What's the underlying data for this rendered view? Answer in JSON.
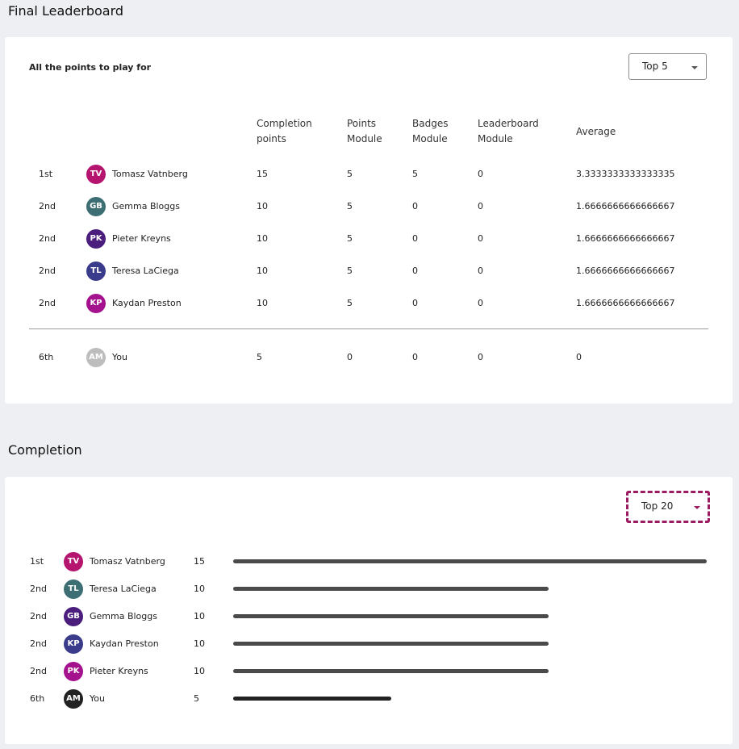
{
  "leaderboard": {
    "title": "Final Leaderboard",
    "subtitle": "All the points to play for",
    "select_label": "Top 5",
    "columns": [
      {
        "l1": "Completion",
        "l2": "points"
      },
      {
        "l1": "Points",
        "l2": "Module"
      },
      {
        "l1": "Badges",
        "l2": "Module"
      },
      {
        "l1": "Leaderboard",
        "l2": "Module"
      },
      {
        "l1": "Average",
        "l2": ""
      }
    ],
    "rows": [
      {
        "rank": "1st",
        "initials": "TV",
        "color": "#b5156f",
        "name": "Tomasz Vatnberg",
        "c1": "15",
        "c2": "5",
        "c3": "5",
        "c4": "0",
        "avg": "3.3333333333333335"
      },
      {
        "rank": "2nd",
        "initials": "GB",
        "color": "#3d6e74",
        "name": "Gemma Bloggs",
        "c1": "10",
        "c2": "5",
        "c3": "0",
        "c4": "0",
        "avg": "1.6666666666666667"
      },
      {
        "rank": "2nd",
        "initials": "PK",
        "color": "#4b1e7e",
        "name": "Pieter Kreyns",
        "c1": "10",
        "c2": "5",
        "c3": "0",
        "c4": "0",
        "avg": "1.6666666666666667"
      },
      {
        "rank": "2nd",
        "initials": "TL",
        "color": "#3a3c8b",
        "name": "Teresa LaCiega",
        "c1": "10",
        "c2": "5",
        "c3": "0",
        "c4": "0",
        "avg": "1.6666666666666667"
      },
      {
        "rank": "2nd",
        "initials": "KP",
        "color": "#a4128d",
        "name": "Kaydan Preston",
        "c1": "10",
        "c2": "5",
        "c3": "0",
        "c4": "0",
        "avg": "1.6666666666666667"
      }
    ],
    "self_row": {
      "rank": "6th",
      "initials": "AM",
      "color": "#bdbdbd",
      "name": "You",
      "c1": "5",
      "c2": "0",
      "c3": "0",
      "c4": "0",
      "avg": "0"
    }
  },
  "completion": {
    "title": "Completion",
    "select_label": "Top 20",
    "max_value": 15,
    "rows": [
      {
        "rank": "1st",
        "initials": "TV",
        "color": "#b5156f",
        "name": "Tomasz Vatnberg",
        "value": 15,
        "value_label": "15"
      },
      {
        "rank": "2nd",
        "initials": "TL",
        "color": "#3d6e74",
        "name": "Teresa LaCiega",
        "value": 10,
        "value_label": "10"
      },
      {
        "rank": "2nd",
        "initials": "GB",
        "color": "#4b1e7e",
        "name": "Gemma Bloggs",
        "value": 10,
        "value_label": "10"
      },
      {
        "rank": "2nd",
        "initials": "KP",
        "color": "#3a3c8b",
        "name": "Kaydan Preston",
        "value": 10,
        "value_label": "10"
      },
      {
        "rank": "2nd",
        "initials": "PK",
        "color": "#a4128d",
        "name": "Pieter Kreyns",
        "value": 10,
        "value_label": "10"
      },
      {
        "rank": "6th",
        "initials": "AM",
        "color": "#222222",
        "name": "You",
        "value": 5,
        "value_label": "5",
        "self": true
      }
    ]
  }
}
